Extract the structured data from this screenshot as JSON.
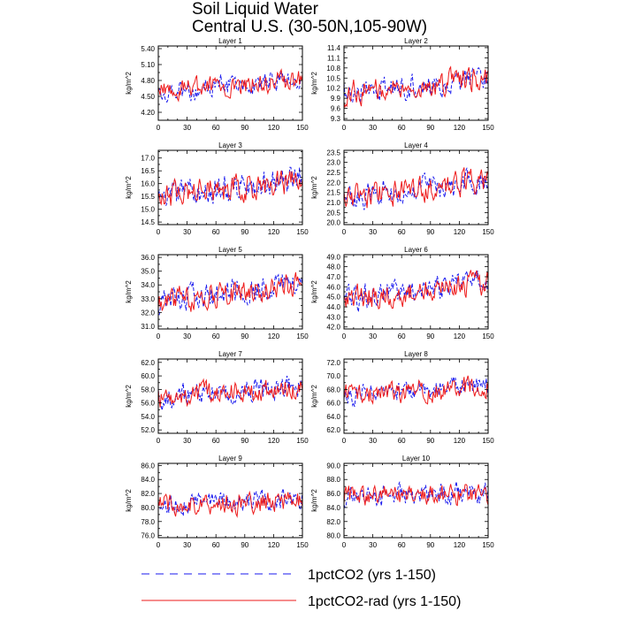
{
  "title_line1": "Soil Liquid Water",
  "title_line2": "Central U.S. (30-50N,105-90W)",
  "ylabel": "kg/m^2",
  "colors": {
    "run1": "#1a1aee",
    "run2": "#ee1a1a",
    "axis": "#000000"
  },
  "legend": [
    {
      "name": "1pctCO2 (yrs 1-150)",
      "style": "dashed",
      "color": "#1a1aee"
    },
    {
      "name": "1pctCO2-rad (yrs 1-150)",
      "style": "solid",
      "color": "#ee1a1a"
    }
  ],
  "chart_data": [
    {
      "type": "line",
      "title": "Layer 1",
      "xlabel": "",
      "ylabel": "kg/m^2",
      "xlim": [
        0,
        150
      ],
      "xticks": [
        0,
        30,
        60,
        90,
        120,
        150
      ],
      "ylim": [
        4.05,
        5.45
      ],
      "yticks": [
        "4.20",
        "4.50",
        "4.80",
        "5.10",
        "5.40"
      ],
      "series": [
        {
          "name": "1pctCO2 (yrs 1-150)",
          "mean_start": 4.6,
          "mean_end": 4.82,
          "amplitude": 0.22
        },
        {
          "name": "1pctCO2-rad (yrs 1-150)",
          "mean_start": 4.6,
          "mean_end": 4.8,
          "amplitude": 0.22
        }
      ]
    },
    {
      "type": "line",
      "title": "Layer 2",
      "xlabel": "",
      "ylabel": "kg/m^2",
      "xlim": [
        0,
        150
      ],
      "xticks": [
        0,
        30,
        60,
        90,
        120,
        150
      ],
      "ylim": [
        9.25,
        11.45
      ],
      "yticks": [
        "9.3",
        "9.6",
        "9.9",
        "10.2",
        "10.5",
        "10.8",
        "11.1",
        "11.4"
      ],
      "series": [
        {
          "name": "1pctCO2 (yrs 1-150)",
          "mean_start": 10.05,
          "mean_end": 10.55,
          "amplitude": 0.4
        },
        {
          "name": "1pctCO2-rad (yrs 1-150)",
          "mean_start": 10.05,
          "mean_end": 10.5,
          "amplitude": 0.4
        }
      ]
    },
    {
      "type": "line",
      "title": "Layer 3",
      "xlabel": "",
      "ylabel": "kg/m^2",
      "xlim": [
        0,
        150
      ],
      "xticks": [
        0,
        30,
        60,
        90,
        120,
        150
      ],
      "ylim": [
        14.4,
        17.3
      ],
      "yticks": [
        "14.5",
        "15.0",
        "15.5",
        "16.0",
        "16.5",
        "17.0"
      ],
      "series": [
        {
          "name": "1pctCO2 (yrs 1-150)",
          "mean_start": 15.5,
          "mean_end": 16.2,
          "amplitude": 0.6
        },
        {
          "name": "1pctCO2-rad (yrs 1-150)",
          "mean_start": 15.5,
          "mean_end": 16.1,
          "amplitude": 0.6
        }
      ]
    },
    {
      "type": "line",
      "title": "Layer 4",
      "xlabel": "",
      "ylabel": "kg/m^2",
      "xlim": [
        0,
        150
      ],
      "xticks": [
        0,
        30,
        60,
        90,
        120,
        150
      ],
      "ylim": [
        19.9,
        23.6
      ],
      "yticks": [
        "20.0",
        "20.5",
        "21.0",
        "21.5",
        "22.0",
        "22.5",
        "23.0",
        "23.5"
      ],
      "series": [
        {
          "name": "1pctCO2 (yrs 1-150)",
          "mean_start": 21.2,
          "mean_end": 22.2,
          "amplitude": 0.7
        },
        {
          "name": "1pctCO2-rad (yrs 1-150)",
          "mean_start": 21.2,
          "mean_end": 22.1,
          "amplitude": 0.7
        }
      ]
    },
    {
      "type": "line",
      "title": "Layer 5",
      "xlabel": "",
      "ylabel": "kg/m^2",
      "xlim": [
        0,
        150
      ],
      "xticks": [
        0,
        30,
        60,
        90,
        120,
        150
      ],
      "ylim": [
        30.8,
        36.2
      ],
      "yticks": [
        "31.0",
        "32.0",
        "33.0",
        "34.0",
        "35.0",
        "36.0"
      ],
      "series": [
        {
          "name": "1pctCO2 (yrs 1-150)",
          "mean_start": 32.8,
          "mean_end": 34.2,
          "amplitude": 1.0
        },
        {
          "name": "1pctCO2-rad (yrs 1-150)",
          "mean_start": 32.8,
          "mean_end": 34.0,
          "amplitude": 1.0
        }
      ]
    },
    {
      "type": "line",
      "title": "Layer 6",
      "xlabel": "",
      "ylabel": "kg/m^2",
      "xlim": [
        0,
        150
      ],
      "xticks": [
        0,
        30,
        60,
        90,
        120,
        150
      ],
      "ylim": [
        41.8,
        49.2
      ],
      "yticks": [
        "42.0",
        "43.0",
        "44.0",
        "45.0",
        "46.0",
        "47.0",
        "48.0",
        "49.0"
      ],
      "series": [
        {
          "name": "1pctCO2 (yrs 1-150)",
          "mean_start": 44.8,
          "mean_end": 46.6,
          "amplitude": 1.4
        },
        {
          "name": "1pctCO2-rad (yrs 1-150)",
          "mean_start": 44.8,
          "mean_end": 46.4,
          "amplitude": 1.4
        }
      ]
    },
    {
      "type": "line",
      "title": "Layer 7",
      "xlabel": "",
      "ylabel": "kg/m^2",
      "xlim": [
        0,
        150
      ],
      "xticks": [
        0,
        30,
        60,
        90,
        120,
        150
      ],
      "ylim": [
        51.5,
        62.5
      ],
      "yticks": [
        "52.0",
        "54.0",
        "56.0",
        "58.0",
        "60.0",
        "62.0"
      ],
      "series": [
        {
          "name": "1pctCO2 (yrs 1-150)",
          "mean_start": 56.8,
          "mean_end": 58.5,
          "amplitude": 1.8
        },
        {
          "name": "1pctCO2-rad (yrs 1-150)",
          "mean_start": 56.8,
          "mean_end": 58.3,
          "amplitude": 1.8
        }
      ]
    },
    {
      "type": "line",
      "title": "Layer 8",
      "xlabel": "",
      "ylabel": "kg/m^2",
      "xlim": [
        0,
        150
      ],
      "xticks": [
        0,
        30,
        60,
        90,
        120,
        150
      ],
      "ylim": [
        61.5,
        72.5
      ],
      "yticks": [
        "62.0",
        "64.0",
        "66.0",
        "68.0",
        "70.0",
        "72.0"
      ],
      "series": [
        {
          "name": "1pctCO2 (yrs 1-150)",
          "mean_start": 67.2,
          "mean_end": 68.6,
          "amplitude": 1.8
        },
        {
          "name": "1pctCO2-rad (yrs 1-150)",
          "mean_start": 67.2,
          "mean_end": 68.4,
          "amplitude": 1.8
        }
      ]
    },
    {
      "type": "line",
      "title": "Layer 9",
      "xlabel": "",
      "ylabel": "kg/m^2",
      "xlim": [
        0,
        150
      ],
      "xticks": [
        0,
        30,
        60,
        90,
        120,
        150
      ],
      "ylim": [
        75.7,
        86.3
      ],
      "yticks": [
        "76.0",
        "78.0",
        "80.0",
        "82.0",
        "84.0",
        "86.0"
      ],
      "series": [
        {
          "name": "1pctCO2 (yrs 1-150)",
          "mean_start": 80.4,
          "mean_end": 81.2,
          "amplitude": 1.7
        },
        {
          "name": "1pctCO2-rad (yrs 1-150)",
          "mean_start": 80.4,
          "mean_end": 81.0,
          "amplitude": 1.7
        }
      ]
    },
    {
      "type": "line",
      "title": "Layer 10",
      "xlabel": "",
      "ylabel": "kg/m^2",
      "xlim": [
        0,
        150
      ],
      "xticks": [
        0,
        30,
        60,
        90,
        120,
        150
      ],
      "ylim": [
        79.7,
        90.3
      ],
      "yticks": [
        "80.0",
        "82.0",
        "84.0",
        "86.0",
        "88.0",
        "90.0"
      ],
      "series": [
        {
          "name": "1pctCO2 (yrs 1-150)",
          "mean_start": 85.6,
          "mean_end": 86.0,
          "amplitude": 1.7
        },
        {
          "name": "1pctCO2-rad (yrs 1-150)",
          "mean_start": 85.6,
          "mean_end": 85.9,
          "amplitude": 1.7
        }
      ]
    }
  ]
}
